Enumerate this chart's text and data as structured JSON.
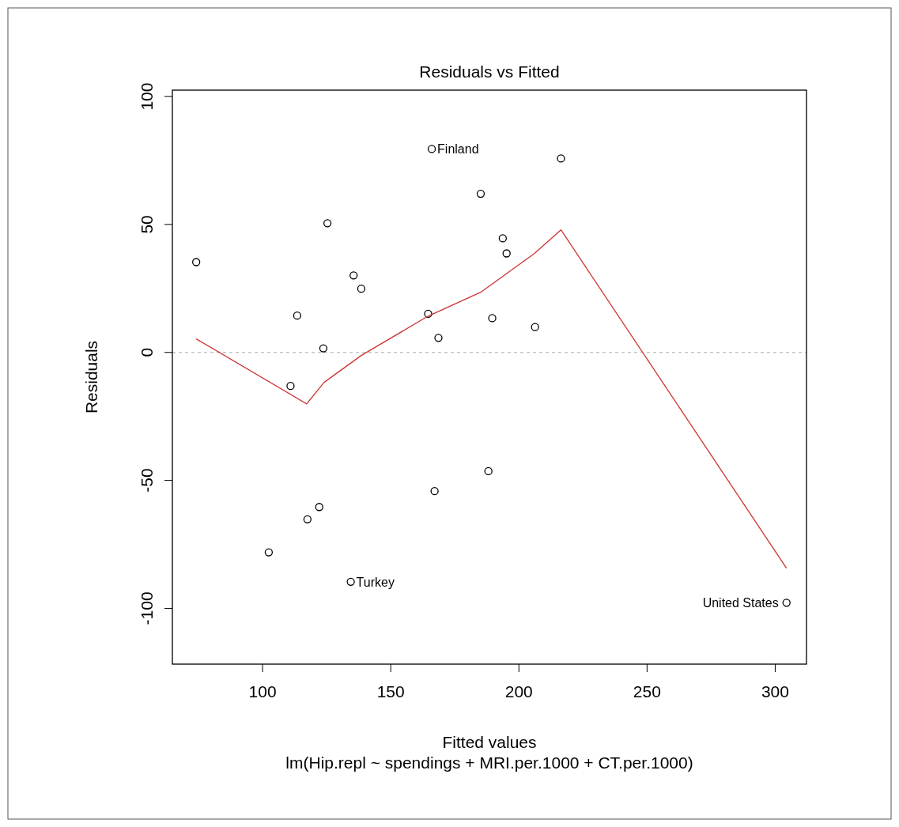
{
  "chart_data": {
    "type": "scatter",
    "title": "Residuals vs Fitted",
    "subtitle": "lm(Hip.repl ~ spendings + MRI.per.1000 + CT.per.1000)",
    "xlabel": "Fitted values",
    "ylabel": "Residuals",
    "xlim": [
      64.8,
      312.2
    ],
    "ylim": [
      -121.8,
      102.5
    ],
    "xticks": [
      100,
      150,
      200,
      250,
      300
    ],
    "yticks": [
      -100,
      -50,
      0,
      50,
      100
    ],
    "grid": false,
    "series": [
      {
        "color": "#000000",
        "marker": "circle",
        "x": [
          74.1,
          125.3,
          135.5,
          138.5,
          113.5,
          123.7,
          110.9,
          164.6,
          168.6,
          167.1,
          122.1,
          117.5,
          102.4,
          134.4,
          166.0,
          185.1,
          216.4,
          193.7,
          195.2,
          189.6,
          206.3,
          188.1,
          304.4
        ],
        "values": [
          35.3,
          50.5,
          30.1,
          24.9,
          14.4,
          1.6,
          -13.1,
          15.1,
          5.7,
          -54.2,
          -60.4,
          -65.2,
          -78.1,
          -89.6,
          79.5,
          62.0,
          75.8,
          44.6,
          38.7,
          13.4,
          9.9,
          -46.4,
          -97.8
        ]
      },
      {
        "type": "line",
        "color": "#cc3333",
        "line_style": "solid",
        "marker": "none",
        "x": [
          74.1,
          117.2,
          124.0,
          138.5,
          164.6,
          185.4,
          206.1,
          216.4,
          304.4
        ],
        "values": [
          5.3,
          -20.1,
          -11.7,
          -1.2,
          14.2,
          23.7,
          38.7,
          47.9,
          -84.3
        ]
      }
    ],
    "ref_lines": [
      {
        "axis": "y",
        "value": 0,
        "color": "#aaaaaa",
        "line_style": "dashed"
      }
    ],
    "annotations": [
      {
        "text": "Finland",
        "x": 166.0,
        "y": 79.5
      },
      {
        "text": "Turkey",
        "x": 134.4,
        "y": -89.6
      },
      {
        "text": "United States",
        "x": 304.4,
        "y": -97.8
      }
    ]
  }
}
